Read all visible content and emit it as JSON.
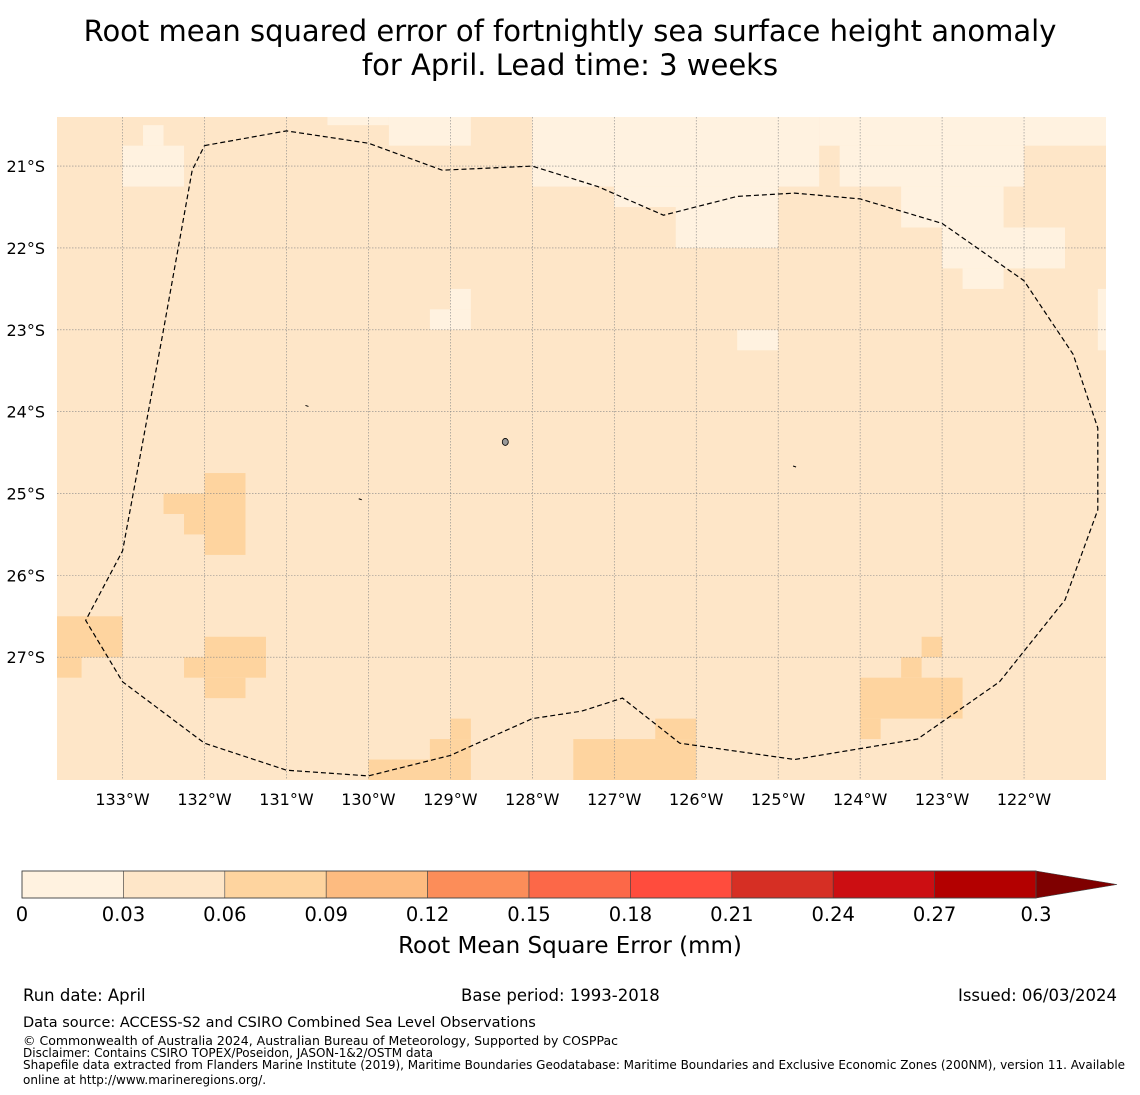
{
  "title": {
    "line1": "Root mean squared error of fortnightly sea surface height anomaly",
    "line2": "for April. Lead time: 3 weeks"
  },
  "chart_data": {
    "type": "heatmap",
    "x_range": [
      -133.8,
      -121.0
    ],
    "y_range": [
      -28.5,
      -20.4
    ],
    "x_ticks": [
      "133°W",
      "132°W",
      "131°W",
      "130°W",
      "129°W",
      "128°W",
      "127°W",
      "126°W",
      "125°W",
      "124°W",
      "123°W",
      "122°W"
    ],
    "x_tick_values": [
      -133,
      -132,
      -131,
      -130,
      -129,
      -128,
      -127,
      -126,
      -125,
      -124,
      -123,
      -122
    ],
    "y_ticks": [
      "21°S",
      "22°S",
      "23°S",
      "24°S",
      "25°S",
      "26°S",
      "27°S"
    ],
    "y_tick_values": [
      -21,
      -22,
      -23,
      -24,
      -25,
      -26,
      -27
    ],
    "grid": true,
    "background_value_range": [
      0.03,
      0.06
    ],
    "regions": [
      {
        "bin": 0,
        "lon": [
          -133.0,
          -132.25
        ],
        "lat": [
          -21.25,
          -20.75
        ]
      },
      {
        "bin": 0,
        "lon": [
          -132.75,
          -132.5
        ],
        "lat": [
          -20.75,
          -20.5
        ]
      },
      {
        "bin": 0,
        "lon": [
          -130.5,
          -129.75
        ],
        "lat": [
          -20.5,
          -20.4
        ]
      },
      {
        "bin": 0,
        "lon": [
          -129.75,
          -128.75
        ],
        "lat": [
          -20.75,
          -20.4
        ]
      },
      {
        "bin": 0,
        "lon": [
          -128.0,
          -124.5
        ],
        "lat": [
          -21.25,
          -20.4
        ]
      },
      {
        "bin": 0,
        "lon": [
          -127.0,
          -125.0
        ],
        "lat": [
          -21.5,
          -21.25
        ]
      },
      {
        "bin": 0,
        "lon": [
          -126.25,
          -125.0
        ],
        "lat": [
          -22.0,
          -21.5
        ]
      },
      {
        "bin": 0,
        "lon": [
          -124.5,
          -121.0
        ],
        "lat": [
          -20.75,
          -20.4
        ]
      },
      {
        "bin": 0,
        "lon": [
          -124.25,
          -122.0
        ],
        "lat": [
          -21.25,
          -20.75
        ]
      },
      {
        "bin": 0,
        "lon": [
          -123.5,
          -122.25
        ],
        "lat": [
          -21.75,
          -21.25
        ]
      },
      {
        "bin": 0,
        "lon": [
          -123.0,
          -121.5
        ],
        "lat": [
          -22.25,
          -21.75
        ]
      },
      {
        "bin": 0,
        "lon": [
          -122.75,
          -122.25
        ],
        "lat": [
          -22.5,
          -22.25
        ]
      },
      {
        "bin": 0,
        "lon": [
          -121.0,
          -121.1
        ],
        "lat": [
          -23.25,
          -22.5
        ]
      },
      {
        "bin": 0,
        "lon": [
          -129.25,
          -128.75
        ],
        "lat": [
          -23.0,
          -22.75
        ]
      },
      {
        "bin": 0,
        "lon": [
          -129.0,
          -128.75
        ],
        "lat": [
          -22.75,
          -22.5
        ]
      },
      {
        "bin": 0,
        "lon": [
          -125.5,
          -125.0
        ],
        "lat": [
          -23.25,
          -23.0
        ]
      },
      {
        "bin": 2,
        "lon": [
          -132.0,
          -131.5
        ],
        "lat": [
          -25.75,
          -24.75
        ]
      },
      {
        "bin": 2,
        "lon": [
          -132.5,
          -132.0
        ],
        "lat": [
          -25.25,
          -25.0
        ]
      },
      {
        "bin": 2,
        "lon": [
          -132.25,
          -132.0
        ],
        "lat": [
          -25.5,
          -25.25
        ]
      },
      {
        "bin": 2,
        "lon": [
          -133.8,
          -133.0
        ],
        "lat": [
          -27.0,
          -26.5
        ]
      },
      {
        "bin": 2,
        "lon": [
          -133.8,
          -133.5
        ],
        "lat": [
          -27.25,
          -27.0
        ]
      },
      {
        "bin": 2,
        "lon": [
          -132.0,
          -131.25
        ],
        "lat": [
          -27.25,
          -26.75
        ]
      },
      {
        "bin": 2,
        "lon": [
          -132.25,
          -132.0
        ],
        "lat": [
          -27.25,
          -27.0
        ]
      },
      {
        "bin": 2,
        "lon": [
          -132.0,
          -131.5
        ],
        "lat": [
          -27.5,
          -27.25
        ]
      },
      {
        "bin": 2,
        "lon": [
          -130.0,
          -128.75
        ],
        "lat": [
          -28.5,
          -28.25
        ]
      },
      {
        "bin": 2,
        "lon": [
          -129.25,
          -128.75
        ],
        "lat": [
          -28.25,
          -28.0
        ]
      },
      {
        "bin": 2,
        "lon": [
          -129.0,
          -128.75
        ],
        "lat": [
          -28.0,
          -27.75
        ]
      },
      {
        "bin": 2,
        "lon": [
          -127.5,
          -126.0
        ],
        "lat": [
          -28.5,
          -28.0
        ]
      },
      {
        "bin": 2,
        "lon": [
          -126.5,
          -126.0
        ],
        "lat": [
          -28.0,
          -27.75
        ]
      },
      {
        "bin": 2,
        "lon": [
          -124.0,
          -122.75
        ],
        "lat": [
          -27.75,
          -27.25
        ]
      },
      {
        "bin": 2,
        "lon": [
          -124.0,
          -123.75
        ],
        "lat": [
          -28.0,
          -27.75
        ]
      },
      {
        "bin": 2,
        "lon": [
          -123.5,
          -123.25
        ],
        "lat": [
          -27.25,
          -27.0
        ]
      },
      {
        "bin": 2,
        "lon": [
          -123.25,
          -123.0
        ],
        "lat": [
          -27.0,
          -26.75
        ]
      }
    ],
    "boundary_style": "dashed",
    "boundary": [
      [
        -132.0,
        -20.75
      ],
      [
        -131.0,
        -20.57
      ],
      [
        -130.0,
        -20.72
      ],
      [
        -129.1,
        -21.05
      ],
      [
        -128.0,
        -21.0
      ],
      [
        -127.2,
        -21.25
      ],
      [
        -126.4,
        -21.6
      ],
      [
        -125.5,
        -21.37
      ],
      [
        -124.8,
        -21.33
      ],
      [
        -124.0,
        -21.4
      ],
      [
        -123.0,
        -21.7
      ],
      [
        -122.0,
        -22.4
      ],
      [
        -121.4,
        -23.3
      ],
      [
        -121.1,
        -24.2
      ],
      [
        -121.1,
        -25.2
      ],
      [
        -121.5,
        -26.3
      ],
      [
        -122.3,
        -27.3
      ],
      [
        -123.3,
        -28.0
      ],
      [
        -124.8,
        -28.25
      ],
      [
        -126.2,
        -28.05
      ],
      [
        -126.9,
        -27.5
      ],
      [
        -127.4,
        -27.66
      ],
      [
        -128.0,
        -27.75
      ],
      [
        -129.0,
        -28.2
      ],
      [
        -130.0,
        -28.45
      ],
      [
        -131.0,
        -28.38
      ],
      [
        -132.0,
        -28.05
      ],
      [
        -133.0,
        -27.3
      ],
      [
        -133.45,
        -26.55
      ],
      [
        -133.0,
        -25.7
      ],
      [
        -132.5,
        -23.0
      ],
      [
        -132.15,
        -21.05
      ],
      [
        -132.0,
        -20.75
      ]
    ],
    "islands": [
      {
        "lon": -128.33,
        "lat": -24.37,
        "size": "small"
      },
      {
        "lon": -130.75,
        "lat": -23.93,
        "size": "dot"
      },
      {
        "lon": -130.1,
        "lat": -25.07,
        "size": "dot"
      },
      {
        "lon": -124.8,
        "lat": -24.67,
        "size": "dot"
      }
    ],
    "colorbar": {
      "label": "Root Mean Square Error (mm)",
      "ticks": [
        "0",
        "0.03",
        "0.06",
        "0.09",
        "0.12",
        "0.15",
        "0.18",
        "0.21",
        "0.24",
        "0.27",
        "0.3"
      ],
      "colors": [
        "#fff2e0",
        "#fee6c8",
        "#fed49f",
        "#fdbb80",
        "#fc8d59",
        "#fc6848",
        "#ff4c3d",
        "#d62f24",
        "#cc0e12",
        "#b30000"
      ],
      "extend_color": "#7f0000"
    }
  },
  "footer": {
    "run_date": "Run date: April",
    "base_period": "Base period: 1993-2018",
    "issued": "Issued: 06/03/2024",
    "data_source": "Data source: ACCESS-S2 and CSIRO Combined Sea Level Observations",
    "copyright": "© Commonwealth of Australia 2024, Australian Bureau of Meteorology, Supported by COSPPac",
    "disclaimer": "Disclaimer: Contains CSIRO TOPEX/Poseidon, JASON-1&2/OSTM data",
    "shapefile_line1": "Shapefile data extracted from Flanders Marine Institute (2019), Maritime Boundaries Geodatabase: Maritime Boundaries and Exclusive Economic Zones (200NM), version 11. Available",
    "shapefile_line2": "online at http://www.marineregions.org/."
  }
}
